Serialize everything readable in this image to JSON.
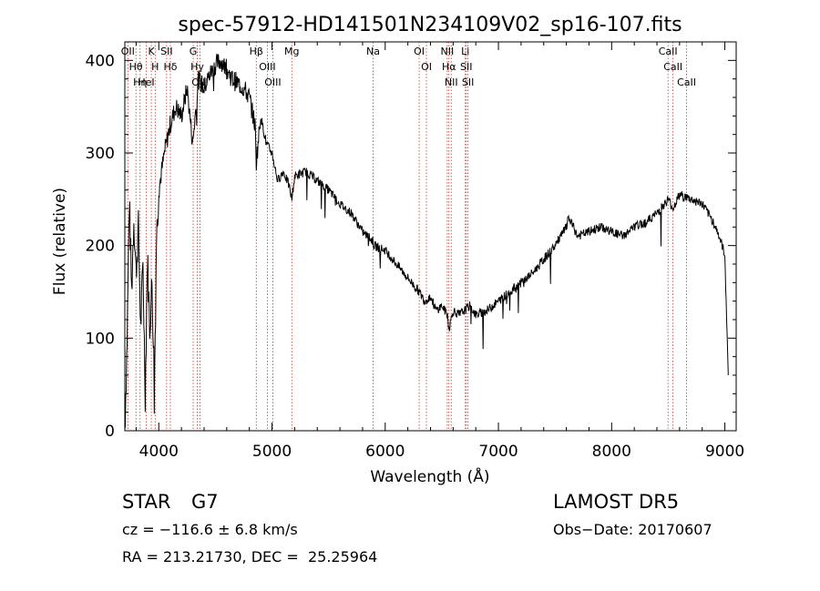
{
  "chart_data": {
    "type": "line",
    "title": "spec-57912-HD141501N234109V02_sp16-107.fits",
    "xlabel": "Wavelength (Å)",
    "ylabel": "Flux (relative)",
    "xlim": [
      3700,
      9100
    ],
    "ylim": [
      0,
      420
    ],
    "xticks": [
      4000,
      5000,
      6000,
      7000,
      8000,
      9000
    ],
    "yticks": [
      0,
      100,
      200,
      300,
      400
    ],
    "series": [
      {
        "x": [
          3700,
          3720,
          3740,
          3760,
          3780,
          3800,
          3820,
          3840,
          3860,
          3880,
          3900,
          3920,
          3940,
          3960,
          3980,
          4000,
          4050,
          4100,
          4150,
          4200,
          4250,
          4300,
          4350,
          4400,
          4450,
          4500,
          4550,
          4600,
          4650,
          4700,
          4750,
          4800,
          4850,
          4861,
          4900,
          4950,
          5000,
          5050,
          5100,
          5150,
          5175,
          5200,
          5300,
          5400,
          5500,
          5600,
          5700,
          5800,
          5890,
          5900,
          6000,
          6100,
          6200,
          6300,
          6350,
          6400,
          6450,
          6500,
          6550,
          6563,
          6600,
          6650,
          6700,
          6750,
          6800,
          6900,
          7000,
          7100,
          7200,
          7300,
          7400,
          7500,
          7550,
          7600,
          7620,
          7700,
          7800,
          7900,
          8000,
          8100,
          8200,
          8300,
          8400,
          8500,
          8542,
          8600,
          8700,
          8800,
          8900,
          8950,
          9000,
          9030
        ],
        "values": [
          0,
          100,
          250,
          150,
          230,
          170,
          220,
          110,
          180,
          40,
          190,
          110,
          160,
          60,
          210,
          260,
          300,
          330,
          350,
          340,
          370,
          310,
          380,
          370,
          385,
          395,
          400,
          390,
          380,
          375,
          370,
          360,
          330,
          290,
          340,
          310,
          300,
          270,
          280,
          265,
          250,
          275,
          280,
          270,
          260,
          245,
          235,
          215,
          205,
          200,
          195,
          180,
          165,
          150,
          140,
          145,
          130,
          135,
          125,
          110,
          130,
          125,
          130,
          135,
          125,
          130,
          140,
          150,
          160,
          170,
          185,
          200,
          210,
          220,
          230,
          210,
          215,
          220,
          215,
          210,
          220,
          225,
          235,
          250,
          240,
          255,
          250,
          245,
          225,
          210,
          190,
          60
        ]
      }
    ],
    "lines": [
      {
        "label": "OII",
        "x": 3727
      },
      {
        "label": "Hθ",
        "x": 3798
      },
      {
        "label": "Hη",
        "x": 3835
      },
      {
        "label": "HeI",
        "x": 3889
      },
      {
        "label": "K",
        "x": 3934
      },
      {
        "label": "H",
        "x": 3968
      },
      {
        "label": "SII",
        "x": 4069
      },
      {
        "label": "Hδ",
        "x": 4102
      },
      {
        "label": "G",
        "x": 4304
      },
      {
        "label": "Hγ",
        "x": 4340
      },
      {
        "label": "OIII",
        "x": 4363
      },
      {
        "label": "Hβ",
        "x": 4861
      },
      {
        "label": "OIII",
        "x": 4959
      },
      {
        "label": "OIII",
        "x": 5007
      },
      {
        "label": "Mg",
        "x": 5175
      },
      {
        "label": "Na",
        "x": 5893
      },
      {
        "label": "OI",
        "x": 6300
      },
      {
        "label": "OI",
        "x": 6364
      },
      {
        "label": "NII",
        "x": 6548
      },
      {
        "label": "Hα",
        "x": 6563
      },
      {
        "label": "NII",
        "x": 6583
      },
      {
        "label": "Li",
        "x": 6708
      },
      {
        "label": "SII",
        "x": 6716
      },
      {
        "label": "SII",
        "x": 6731
      },
      {
        "label": "CaII",
        "x": 8498
      },
      {
        "label": "CaII",
        "x": 8542
      },
      {
        "label": "CaII",
        "x": 8662
      }
    ]
  },
  "info": {
    "class": "STAR",
    "subclass": "G7",
    "cz": "cz = −116.6 ± 6.8 km/s",
    "radec": "RA = 213.21730, DEC =  25.25964",
    "survey": "LAMOST DR5",
    "obs_date": "Obs−Date: 20170607"
  }
}
